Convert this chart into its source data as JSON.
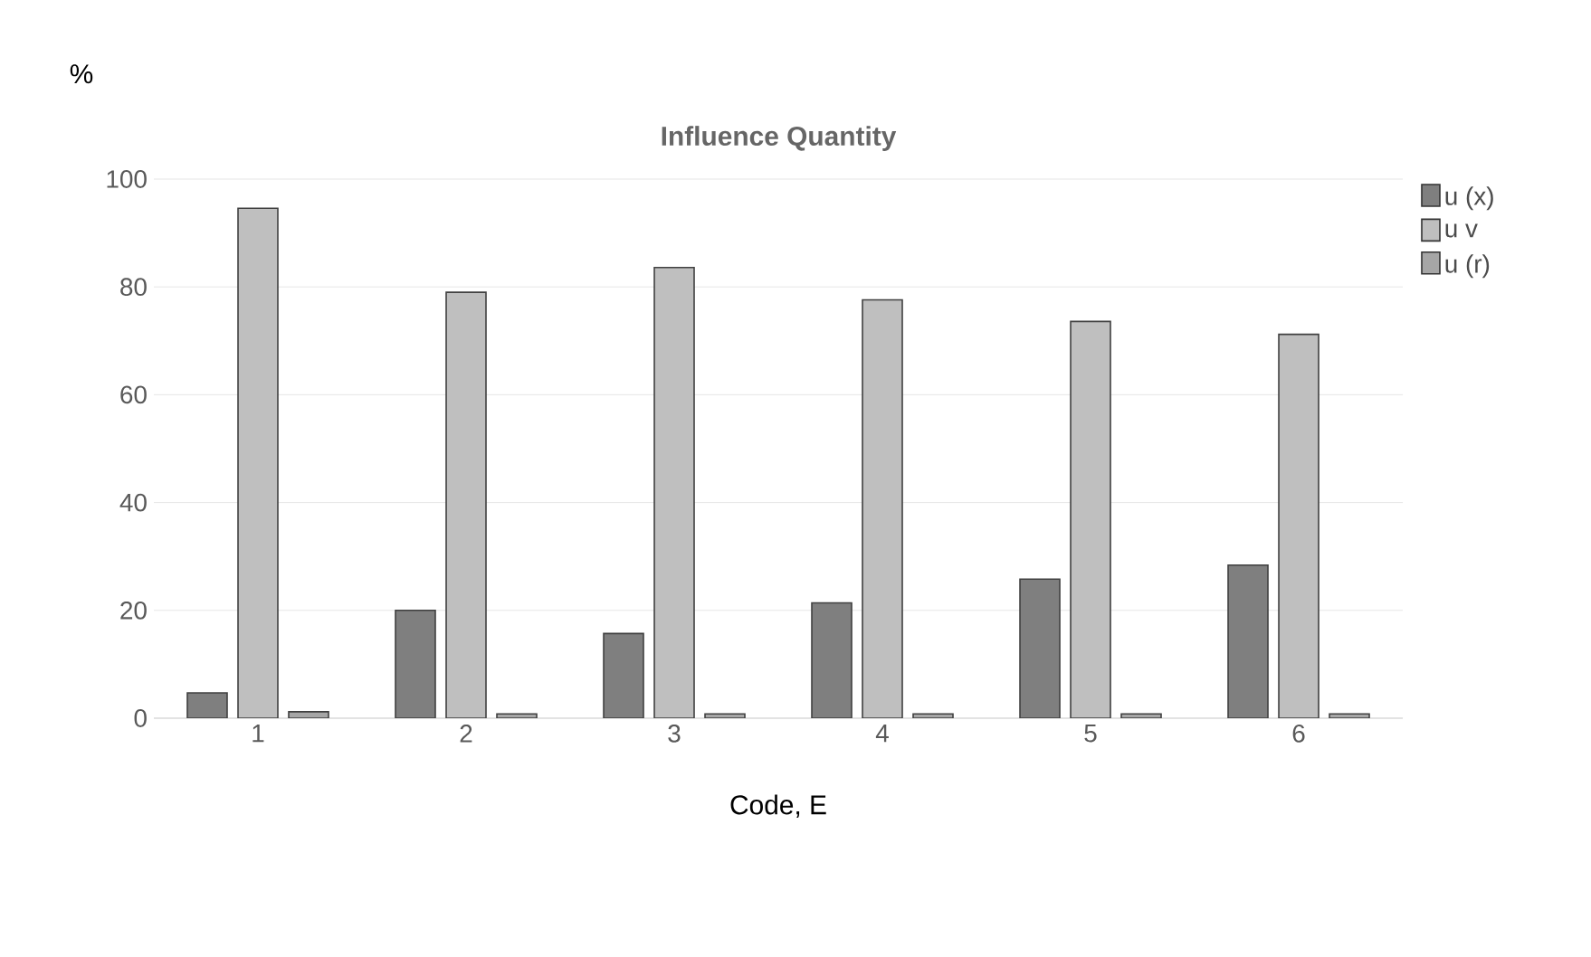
{
  "chart_data": {
    "type": "bar",
    "title": "Influence Quantity",
    "xlabel": "Code, E",
    "ylabel": "%",
    "categories": [
      "1",
      "2",
      "3",
      "4",
      "5",
      "6"
    ],
    "series": [
      {
        "name": "u (x)",
        "color": "#7f7f7f",
        "values": [
          4.7,
          20,
          15.7,
          21.4,
          25.8,
          28.4
        ]
      },
      {
        "name": "u v",
        "color": "#bfbfbf",
        "values": [
          94.6,
          79,
          83.6,
          77.6,
          73.6,
          71.2
        ]
      },
      {
        "name": "u (r)",
        "color": "#a6a6a6",
        "values": [
          1.2,
          0.8,
          0.8,
          0.8,
          0.8,
          0.8
        ]
      }
    ],
    "ylim": [
      0,
      100
    ],
    "yticks": [
      0,
      20,
      40,
      60,
      80,
      100
    ],
    "grid": "y",
    "legend": "top right"
  }
}
